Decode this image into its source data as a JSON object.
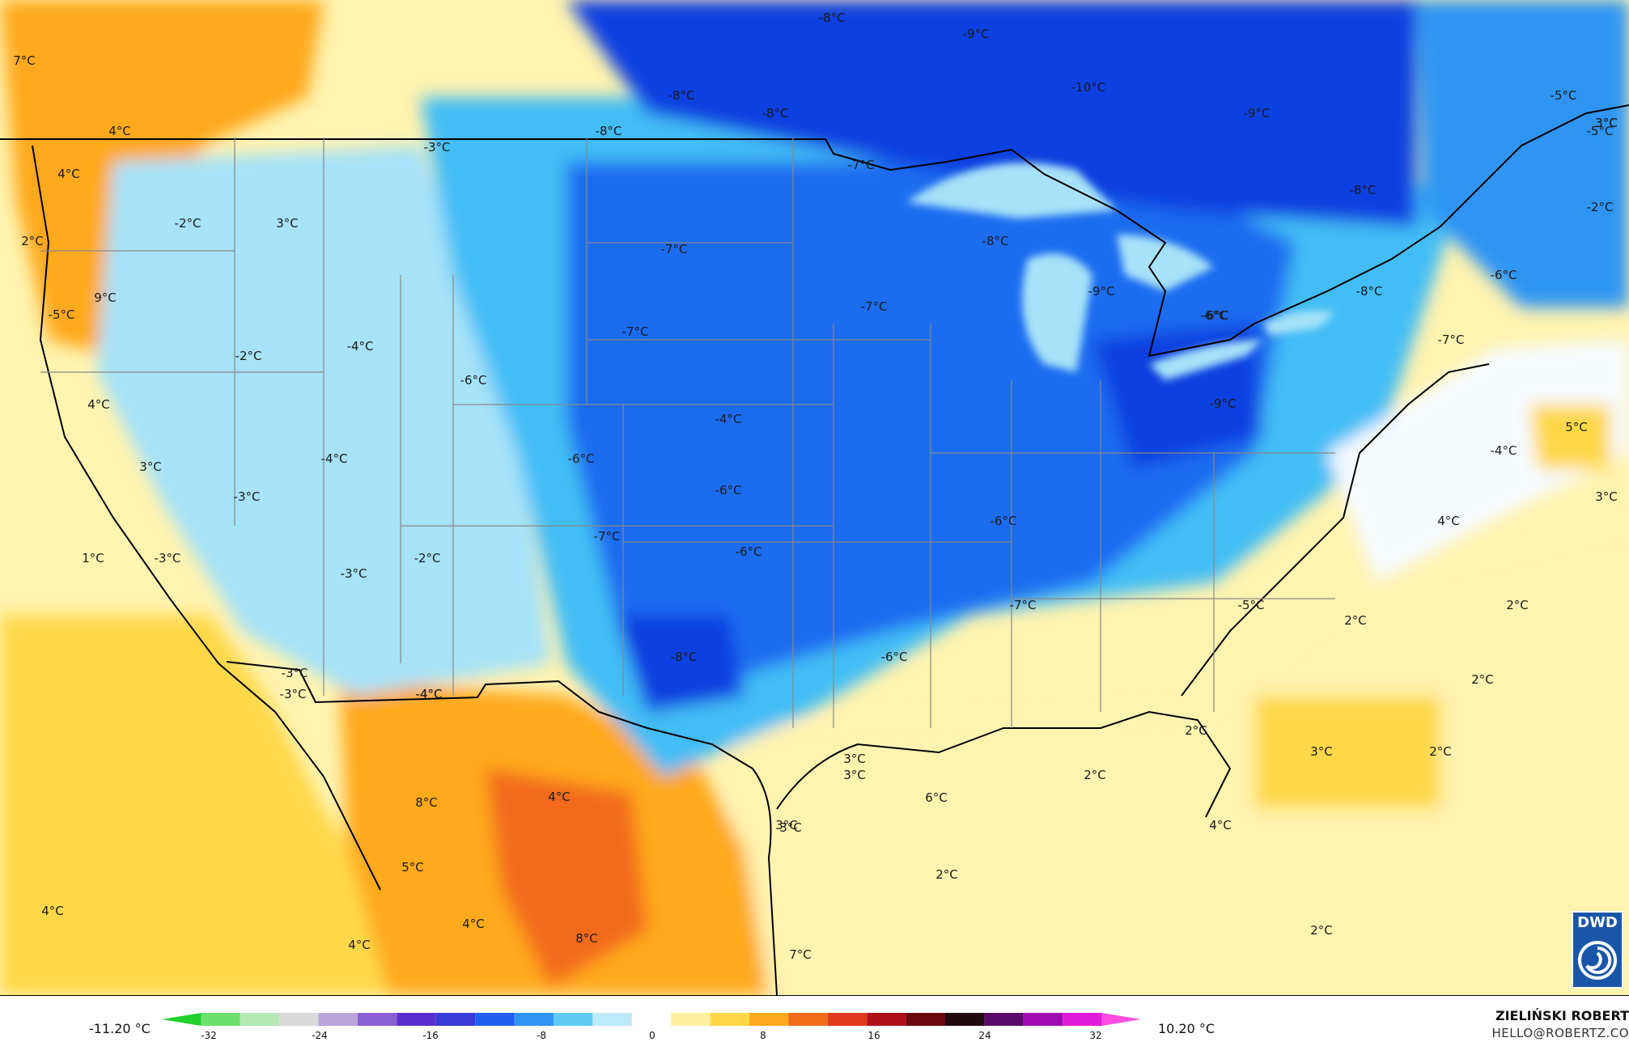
{
  "map": {
    "colors": {
      "deep_blue": "#0b3fe0",
      "blue": "#1f6cf0",
      "mid_blue": "#2f95f3",
      "light_blue": "#43bdf5",
      "pale_blue": "#a6e2f8",
      "white": "#f6fbff",
      "pale_yellow": "#fff3b0",
      "yellow": "#ffd84a",
      "orange": "#ffa91f",
      "dark_orange": "#f26b1b",
      "land_border": "#000000",
      "state_border": "#888888"
    },
    "labels": [
      {
        "text": "7°C"
      },
      {
        "text": "4°C"
      },
      {
        "text": "4°C"
      },
      {
        "text": "2°C"
      },
      {
        "text": "-2°C"
      },
      {
        "text": "3°C"
      },
      {
        "text": "-3°C"
      },
      {
        "text": "9°C"
      },
      {
        "text": "-5°C"
      },
      {
        "text": "-4°C"
      },
      {
        "text": "-2°C"
      },
      {
        "text": "4°C"
      },
      {
        "text": "-6°C"
      },
      {
        "text": "-4°C"
      },
      {
        "text": "3°C"
      },
      {
        "text": "-3°C"
      },
      {
        "text": "1°C"
      },
      {
        "text": "-3°C"
      },
      {
        "text": "-3°C"
      },
      {
        "text": "-2°C"
      },
      {
        "text": "-3°C"
      },
      {
        "text": "-4°C"
      },
      {
        "text": "3°C"
      },
      {
        "text": "-8°C"
      },
      {
        "text": "-8°C"
      },
      {
        "text": "-8°C"
      },
      {
        "text": "-8°C"
      },
      {
        "text": "-9°C"
      },
      {
        "text": "-10°C"
      },
      {
        "text": "-9°C"
      },
      {
        "text": "-8°C"
      },
      {
        "text": "-5°C"
      },
      {
        "text": "3°C"
      },
      {
        "text": "-5°C"
      },
      {
        "text": "-2°C"
      },
      {
        "text": "-7°C"
      },
      {
        "text": "-7°C"
      },
      {
        "text": "-8°C"
      },
      {
        "text": "-7°C"
      },
      {
        "text": "-7°C"
      },
      {
        "text": "-9°C"
      },
      {
        "text": "-6°C"
      },
      {
        "text": "-8°C"
      },
      {
        "text": "-6°C"
      },
      {
        "text": "-7°C"
      },
      {
        "text": "-6°C"
      },
      {
        "text": "-4°C"
      },
      {
        "text": "-6°C"
      },
      {
        "text": "-6°C"
      },
      {
        "text": "-9°C"
      },
      {
        "text": "-7°C"
      },
      {
        "text": "-6°C"
      },
      {
        "text": "-6°C"
      },
      {
        "text": "-8°C"
      },
      {
        "text": "-6°C"
      },
      {
        "text": "-7°C"
      },
      {
        "text": "-5°C"
      },
      {
        "text": "5°C"
      },
      {
        "text": "-4°C"
      },
      {
        "text": "3°C"
      },
      {
        "text": "4°C"
      },
      {
        "text": "2°C"
      },
      {
        "text": "2°C"
      },
      {
        "text": "2°C"
      },
      {
        "text": "2°C"
      },
      {
        "text": "2°C"
      },
      {
        "text": "3°C"
      },
      {
        "text": "2°C"
      },
      {
        "text": "3°C"
      },
      {
        "text": "3°C"
      },
      {
        "text": "7°C"
      },
      {
        "text": "8°C"
      },
      {
        "text": "6°C"
      },
      {
        "text": "4°C"
      },
      {
        "text": "5°C"
      },
      {
        "text": "4°C"
      },
      {
        "text": "4°C"
      },
      {
        "text": "4°C"
      },
      {
        "text": "8°C"
      },
      {
        "text": "3°C"
      },
      {
        "text": "3°C"
      },
      {
        "text": "2°C"
      },
      {
        "text": "4°C"
      },
      {
        "text": "2°C"
      },
      {
        "text": "-3°C"
      },
      {
        "text": "-4°C"
      }
    ]
  },
  "legend": {
    "min_label": "-11.20 °C",
    "max_label": "10.20 °C",
    "ticks": [
      "-32",
      "-24",
      "-16",
      "-8",
      "0",
      "8",
      "16",
      "24",
      "32"
    ],
    "colors": [
      "#1fd12a",
      "#6be06b",
      "#b3e8b3",
      "#d9d9d9",
      "#b8a6d9",
      "#8a5fd1",
      "#5a2fd1",
      "#3a3ad9",
      "#1f5ff0",
      "#2f95f3",
      "#5fcaf5",
      "#bdeaf8",
      "#ffffff",
      "#fff0a0",
      "#ffd84a",
      "#ffa91f",
      "#f26b1b",
      "#e03a1a",
      "#b0101a",
      "#6a0a10",
      "#200a10",
      "#5a0a6a",
      "#a00ab0",
      "#e01ad9",
      "#ff4de0"
    ]
  },
  "credit": {
    "author": "ZIELIŃSKI ROBERT",
    "email": "HELLO@ROBERTZ.CO",
    "logo_text": "DWD"
  }
}
